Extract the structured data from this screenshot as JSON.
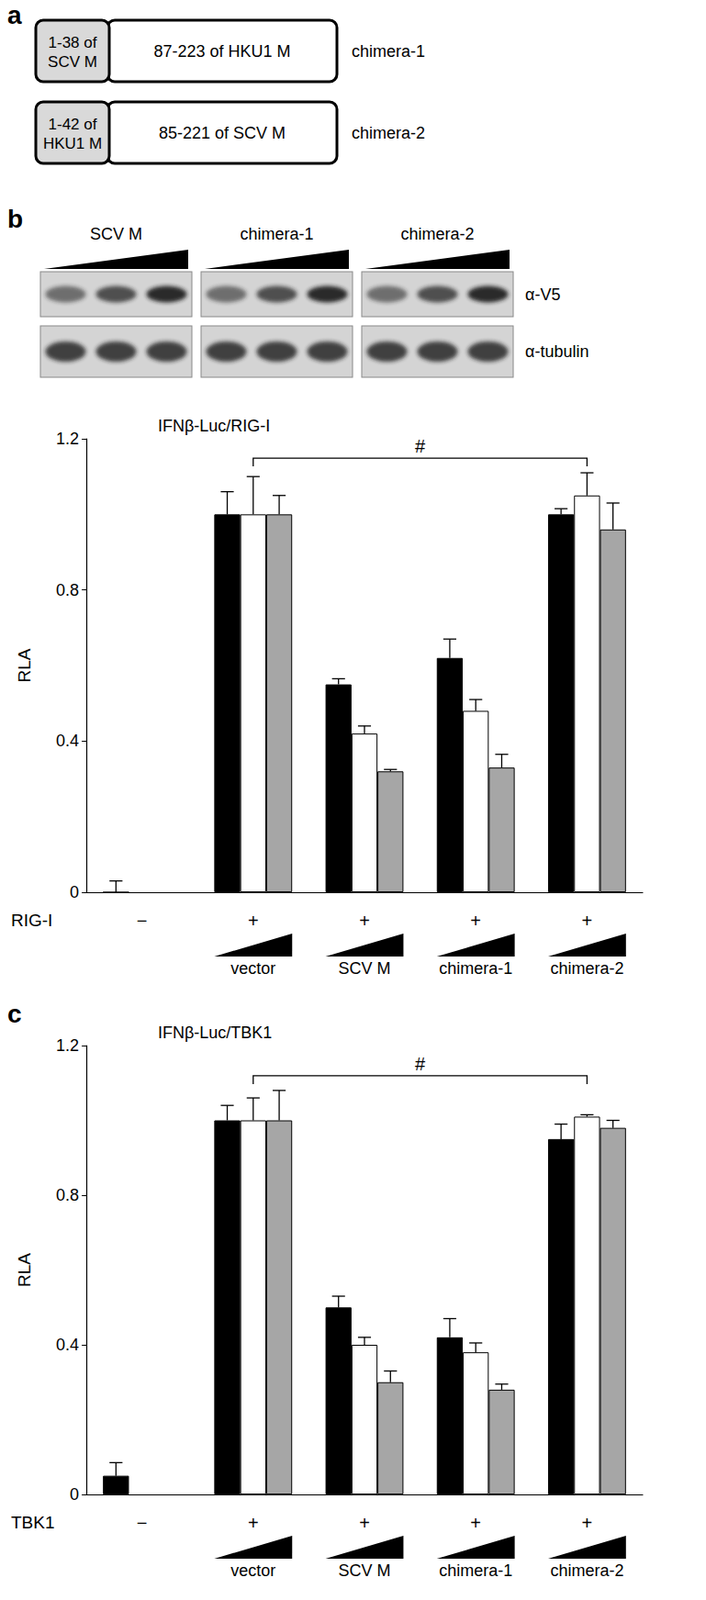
{
  "panel_labels": [
    "a",
    "b",
    "c"
  ],
  "constructs": [
    {
      "domain": "1-38 of SCV M",
      "body": "87-223 of HKU1 M",
      "name": "chimera-1"
    },
    {
      "domain": "1-42 of HKU1 M",
      "body": "85-221 of SCV M",
      "name": "chimera-2"
    }
  ],
  "blot": {
    "groups": [
      "SCV M",
      "chimera-1",
      "chimera-2"
    ],
    "rows": [
      "α-V5",
      "α-tubulin"
    ]
  },
  "chart_data": [
    {
      "type": "bar",
      "title": "IFNβ-Luc/RIG-I",
      "ylabel": "RLA",
      "xlabel": "RIG-I",
      "treatment": [
        "−",
        "+",
        "+",
        "+",
        "+"
      ],
      "categories": [
        null,
        "vector",
        "SCV M",
        "chimera-1",
        "chimera-2"
      ],
      "ylim": [
        0,
        1.2
      ],
      "yticks": [
        0,
        0.4,
        0.8,
        1.2
      ],
      "grid": false,
      "series": [
        {
          "color": "#000000",
          "values": [
            0.0,
            1.0,
            0.55,
            0.62,
            1.0
          ],
          "errors": [
            0.03,
            0.06,
            0.015,
            0.05,
            0.015
          ]
        },
        {
          "color": "#ffffff",
          "values": [
            null,
            1.0,
            0.42,
            0.48,
            1.05
          ],
          "errors": [
            null,
            0.1,
            0.02,
            0.03,
            0.06
          ]
        },
        {
          "color": "#a6a6a6",
          "values": [
            null,
            1.0,
            0.32,
            0.33,
            0.96
          ],
          "errors": [
            null,
            0.05,
            0.005,
            0.035,
            0.07
          ]
        }
      ],
      "annotations": [
        {
          "text": "#",
          "from": "vector",
          "to": "chimera-2"
        }
      ]
    },
    {
      "type": "bar",
      "title": "IFNβ-Luc/TBK1",
      "ylabel": "RLA",
      "xlabel": "TBK1",
      "treatment": [
        "−",
        "+",
        "+",
        "+",
        "+"
      ],
      "categories": [
        null,
        "vector",
        "SCV M",
        "chimera-1",
        "chimera-2"
      ],
      "ylim": [
        0,
        1.2
      ],
      "yticks": [
        0,
        0.4,
        0.8,
        1.2
      ],
      "grid": false,
      "series": [
        {
          "color": "#000000",
          "values": [
            0.05,
            1.0,
            0.5,
            0.42,
            0.95
          ],
          "errors": [
            0.035,
            0.04,
            0.03,
            0.05,
            0.04
          ]
        },
        {
          "color": "#ffffff",
          "values": [
            null,
            1.0,
            0.4,
            0.38,
            1.01
          ],
          "errors": [
            null,
            0.06,
            0.02,
            0.025,
            0.005
          ]
        },
        {
          "color": "#a6a6a6",
          "values": [
            null,
            1.0,
            0.3,
            0.28,
            0.98
          ],
          "errors": [
            null,
            0.08,
            0.03,
            0.015,
            0.02
          ]
        }
      ],
      "annotations": [
        {
          "text": "#",
          "from": "vector",
          "to": "chimera-2"
        }
      ]
    }
  ]
}
